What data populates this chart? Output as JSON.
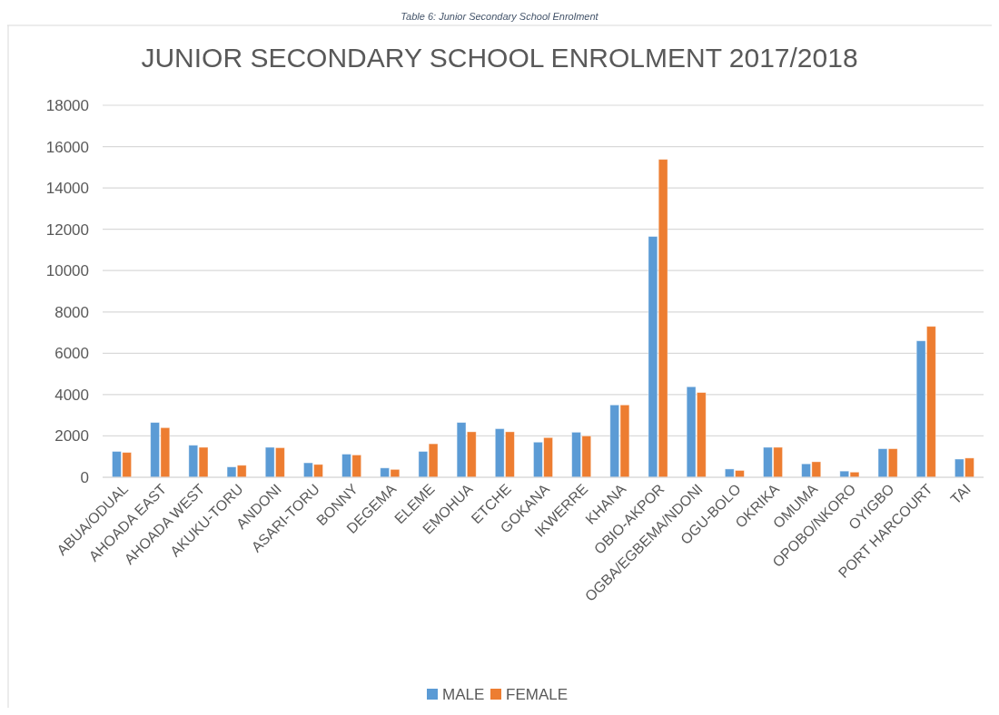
{
  "chart_data": {
    "type": "bar",
    "title": "JUNIOR SECONDARY SCHOOL ENROLMENT 2017/2018",
    "annotations": [
      "Table 6: Junior Secondary School Enrolment"
    ],
    "categories": [
      "ABUA/ODUAL",
      "AHOADA EAST",
      "AHOADA WEST",
      "AKUKU-TORU",
      "ANDONI",
      "ASARI-TORU",
      "BONNY",
      "DEGEMA",
      "ELEME",
      "EMOHUA",
      "ETCHE",
      "GOKANA",
      "IKWERRE",
      "KHANA",
      "OBIO-AKPOR",
      "OGBA/EGBEMA/NDONI",
      "OGU-BOLO",
      "OKRIKA",
      "OMUMA",
      "OPOBO/NKORO",
      "OYIGBO",
      "PORT HARCOURT",
      "TAI"
    ],
    "series": [
      {
        "name": "MALE",
        "color": "#5b9bd5",
        "values": [
          1250,
          2650,
          1550,
          500,
          1450,
          700,
          1120,
          450,
          1250,
          2650,
          2350,
          1700,
          2180,
          3500,
          11650,
          4380,
          400,
          1450,
          650,
          300,
          1380,
          6600,
          880
        ]
      },
      {
        "name": "FEMALE",
        "color": "#ed7d31",
        "values": [
          1200,
          2400,
          1450,
          580,
          1430,
          620,
          1080,
          380,
          1620,
          2200,
          2200,
          1920,
          2000,
          3500,
          15380,
          4100,
          330,
          1450,
          750,
          250,
          1380,
          7300,
          930
        ]
      }
    ],
    "ylim": [
      0,
      18000
    ],
    "yticks": [
      0,
      2000,
      4000,
      6000,
      8000,
      10000,
      12000,
      14000,
      16000,
      18000
    ],
    "grid": "y",
    "legend": "bottom"
  }
}
